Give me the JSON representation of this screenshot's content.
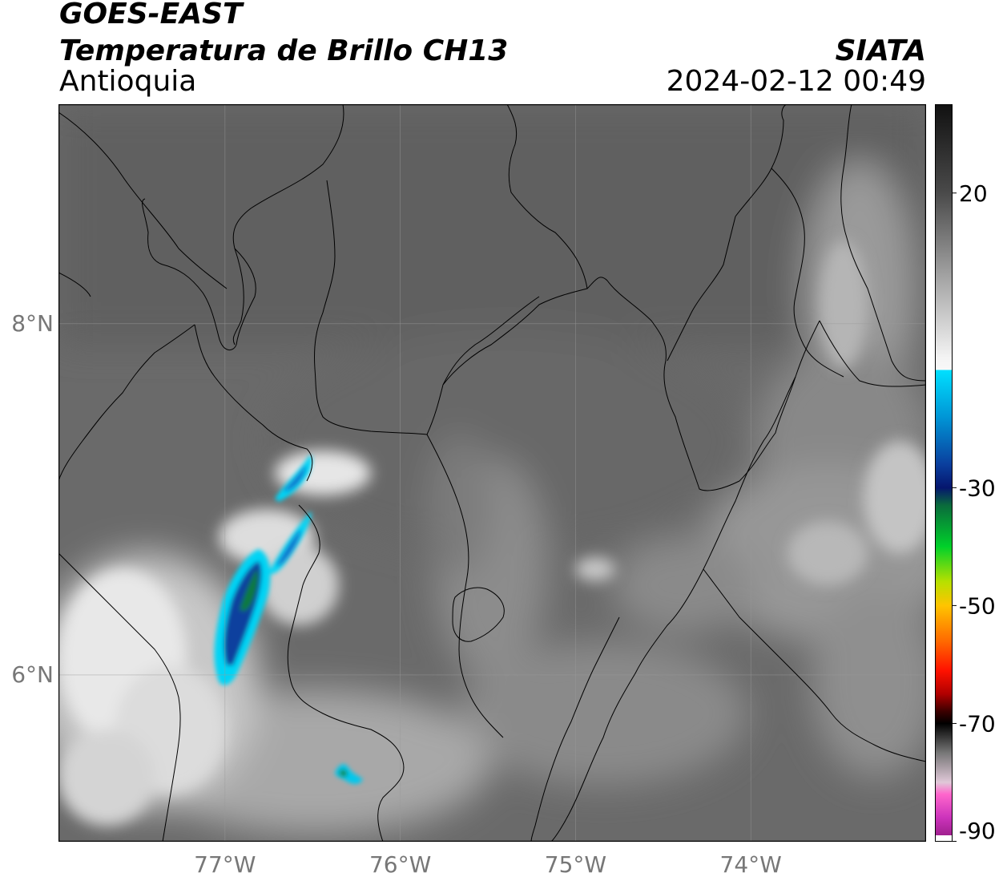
{
  "header": {
    "satellite": "GOES-EAST",
    "product": "Temperatura de Brillo CH13",
    "region": "Antioquia",
    "organization": "SIATA",
    "timestamp": "2024-02-12 00:49"
  },
  "map": {
    "lon_range": [
      -77.95,
      -73.0
    ],
    "lat_range": [
      5.05,
      9.25
    ],
    "lat_ticks": [
      {
        "value": 8,
        "label": "8°N"
      },
      {
        "value": 6,
        "label": "6°N"
      }
    ],
    "lon_ticks": [
      {
        "value": -77,
        "label": "77°W"
      },
      {
        "value": -76,
        "label": "76°W"
      },
      {
        "value": -75,
        "label": "75°W"
      },
      {
        "value": -74,
        "label": "74°W"
      }
    ],
    "gridlines": true
  },
  "colorbar": {
    "range": [
      -90,
      35
    ],
    "ticks": [
      {
        "value": 20,
        "label": "20"
      },
      {
        "value": -30,
        "label": "-30"
      },
      {
        "value": -50,
        "label": "-50"
      },
      {
        "value": -70,
        "label": "-70"
      },
      {
        "value": -90,
        "label": "-90"
      }
    ],
    "stops": [
      {
        "value": 35,
        "color": "#111111"
      },
      {
        "value": 20,
        "color": "#4a4a4a"
      },
      {
        "value": 5,
        "color": "#a8a8a8"
      },
      {
        "value": -8,
        "color": "#f4f4f4"
      },
      {
        "value": -10,
        "color": "#f8f8f8"
      },
      {
        "value": -10.01,
        "color": "#00e0ff"
      },
      {
        "value": -18,
        "color": "#0096d6"
      },
      {
        "value": -26,
        "color": "#0a3f9e"
      },
      {
        "value": -30,
        "color": "#05166e"
      },
      {
        "value": -33,
        "color": "#0a6b3c"
      },
      {
        "value": -40,
        "color": "#00d12a"
      },
      {
        "value": -46,
        "color": "#b8e000"
      },
      {
        "value": -50,
        "color": "#ffc400"
      },
      {
        "value": -56,
        "color": "#ff6a00"
      },
      {
        "value": -61,
        "color": "#ff1200"
      },
      {
        "value": -65,
        "color": "#b00000"
      },
      {
        "value": -68,
        "color": "#3a0000"
      },
      {
        "value": -70,
        "color": "#000000"
      },
      {
        "value": -75,
        "color": "#777777"
      },
      {
        "value": -80,
        "color": "#e0c8d8"
      },
      {
        "value": -82,
        "color": "#ff66cc"
      },
      {
        "value": -86,
        "color": "#cc33bb"
      },
      {
        "value": -89,
        "color": "#a0208f"
      },
      {
        "value": -89.01,
        "color": "#ffffff"
      },
      {
        "value": -90,
        "color": "#ffffff"
      }
    ]
  },
  "colors": {
    "background_gray": "#6a6a6a",
    "border": "#000000",
    "tick_text": "#777777"
  }
}
